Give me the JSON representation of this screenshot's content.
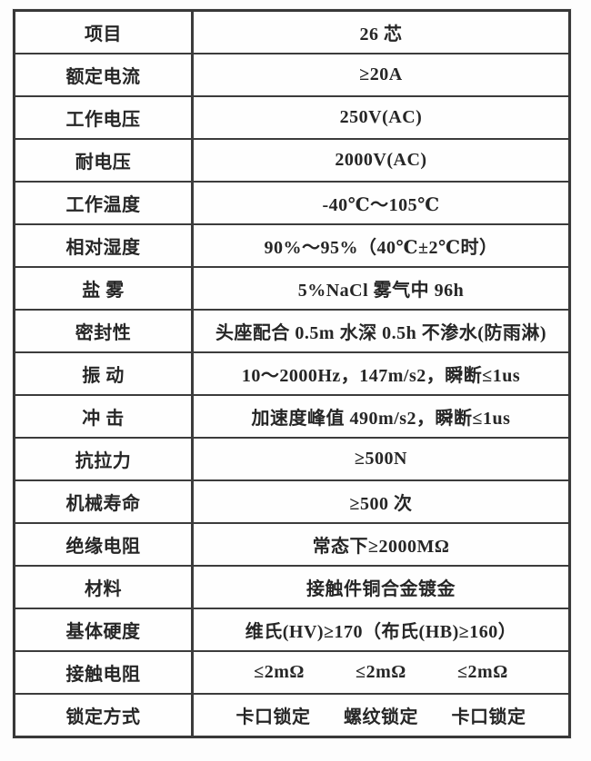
{
  "colors": {
    "border": "#3c3c3c",
    "text": "#262626",
    "cell_background": "#fefefe",
    "page_background": "#fdfdfd"
  },
  "table": {
    "header": {
      "label": "项目",
      "value": "26 芯"
    },
    "rows": [
      {
        "label": "项目",
        "value": "26 芯"
      },
      {
        "label": "额定电流",
        "value": "≥20A"
      },
      {
        "label": "工作电压",
        "value": "250V(AC)"
      },
      {
        "label": "耐电压",
        "value": "2000V(AC)"
      },
      {
        "label": "工作温度",
        "value": "-40℃～105℃"
      },
      {
        "label": "相对湿度",
        "value": "90%～95%（40℃±2℃时）"
      },
      {
        "label": "盐 雾",
        "value": "5%NaCl 雾气中 96h"
      },
      {
        "label": "密封性",
        "value": "头座配合 0.5m 水深 0.5h 不渗水(防雨淋)"
      },
      {
        "label": "振 动",
        "value": "10～2000Hz，147m/s2，瞬断≤1us"
      },
      {
        "label": "冲 击",
        "value": "加速度峰值 490m/s2，瞬断≤1us"
      },
      {
        "label": "抗拉力",
        "value": "≥500N"
      },
      {
        "label": "机械寿命",
        "value": "≥500 次"
      },
      {
        "label": "绝缘电阻",
        "value": "常态下≥2000MΩ"
      },
      {
        "label": "材料",
        "value": "接触件铜合金镀金"
      },
      {
        "label": "基体硬度",
        "value": "维氏(HV)≥170（布氏(HB)≥160）"
      },
      {
        "label": "接触电阻",
        "values": [
          "≤2mΩ",
          "≤2mΩ",
          "≤2mΩ"
        ]
      },
      {
        "label": "锁定方式",
        "values": [
          "卡口锁定",
          "螺纹锁定",
          "卡口锁定"
        ]
      }
    ]
  }
}
